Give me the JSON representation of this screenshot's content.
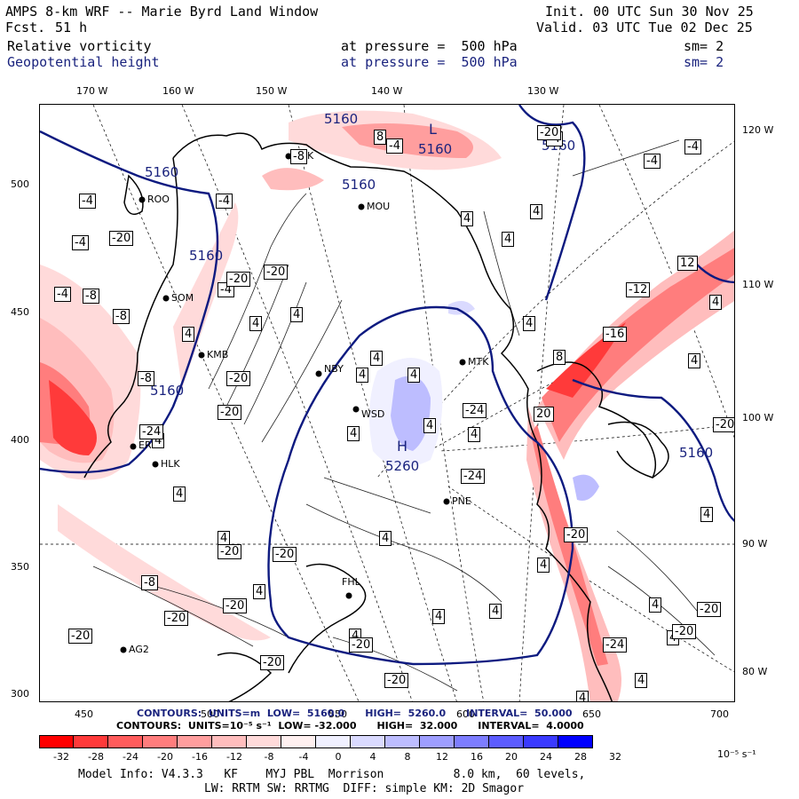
{
  "header": {
    "title": "AMPS 8-km WRF -- Marie Byrd Land Window",
    "fcst_label": "Fcst.",
    "fcst_value": "51 h",
    "init": "Init. 00 UTC Sun 30 Nov 25",
    "valid": "Valid. 03 UTC Tue 02 Dec 25",
    "field1_name": "Relative vorticity",
    "field1_level": "at pressure =  500 hPa",
    "field1_sm": "sm= 2",
    "field2_name": "Geopotential height",
    "field2_level": "at pressure =  500 hPa",
    "field2_sm": "sm= 2"
  },
  "axes": {
    "top_labels": [
      "170 W",
      "160 W",
      "150 W",
      "140 W",
      "130 W"
    ],
    "right_labels": [
      "120 W",
      "110 W",
      "100 W",
      "90 W",
      "80 W"
    ],
    "left_labels": [
      "500",
      "450",
      "400",
      "350",
      "300"
    ],
    "bottom_labels": [
      "450",
      "500",
      "550",
      "600",
      "650",
      "700"
    ]
  },
  "stations": [
    {
      "name": "ROO"
    },
    {
      "name": "FOK"
    },
    {
      "name": "MOU"
    },
    {
      "name": "SOM"
    },
    {
      "name": "KMB"
    },
    {
      "name": "NBY"
    },
    {
      "name": "MTK"
    },
    {
      "name": "WSD"
    },
    {
      "name": "ERG"
    },
    {
      "name": "HLK"
    },
    {
      "name": "PNE"
    },
    {
      "name": "FHL"
    },
    {
      "name": "AG2"
    }
  ],
  "height_labels": [
    "5160",
    "5160",
    "5160",
    "5160",
    "5160",
    "5160",
    "5160",
    "5160",
    "5260"
  ],
  "pressure_centers": {
    "low": "L",
    "high": "H"
  },
  "vorticity_labels": [
    "-4",
    "4",
    "-8",
    "8",
    "-12",
    "12",
    "-16",
    "-20",
    "-24",
    "20"
  ],
  "contours": {
    "line1": "CONTOURS:  UNITS=m  LOW=  5160.0      HIGH=  5260.0      INTERVAL=  50.000",
    "line2": "CONTOURS:  UNITS=10⁻⁵ s⁻¹  LOW= -32.000      HIGH=  32.000      INTERVAL=  4.0000"
  },
  "colorbar": {
    "colors": [
      "#ff0000",
      "#ff3a3a",
      "#ff5c5c",
      "#ff7d7d",
      "#ff9e9e",
      "#ffbdbd",
      "#ffdada",
      "#fff0f0",
      "#ffffff",
      "#f0f0ff",
      "#dadaff",
      "#bdbdff",
      "#9e9eff",
      "#7d7dff",
      "#5c5cff",
      "#3a3aff",
      "#0000ff"
    ],
    "labels": [
      "-32",
      "-28",
      "-24",
      "-20",
      "-16",
      "-12",
      "-8",
      "-4",
      "0",
      "4",
      "8",
      "12",
      "16",
      "20",
      "24",
      "28",
      "32"
    ],
    "units": "10⁻⁵ s⁻¹"
  },
  "footer": {
    "line1": "Model Info: V4.3.3   KF    MYJ PBL  Morrison          8.0 km,  60 levels,",
    "line2": "LW: RRTM SW: RRTMG  DIFF: simple KM: 2D Smagor"
  }
}
